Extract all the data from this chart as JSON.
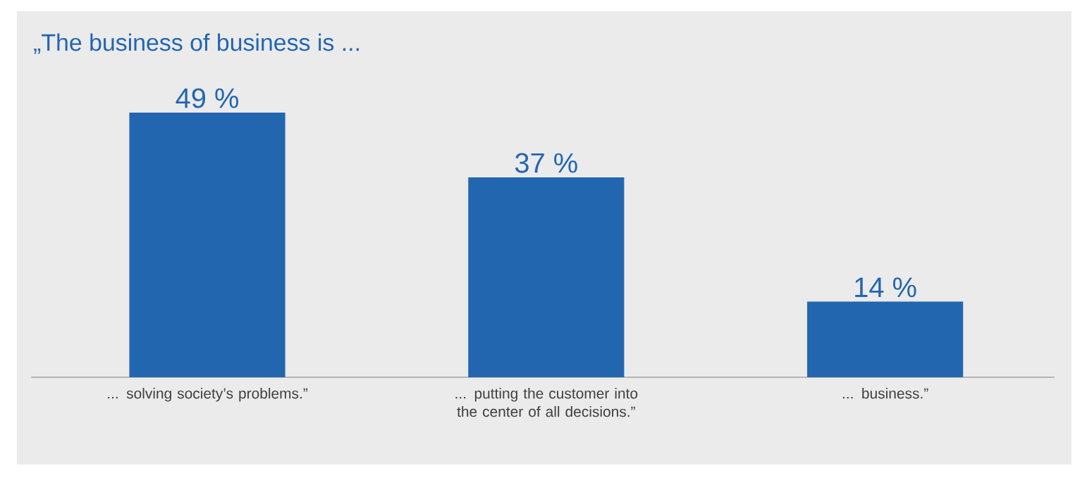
{
  "chart_data": {
    "type": "bar",
    "title": "„The business of business is ...",
    "categories": [
      "... solving society’s problems.”",
      "... putting the customer into the center of all decisions.”",
      "... business.”"
    ],
    "values": [
      49,
      37,
      14
    ],
    "color": "#2366b0",
    "value_labels": [
      "49 %",
      "37 %",
      "14 %"
    ]
  }
}
